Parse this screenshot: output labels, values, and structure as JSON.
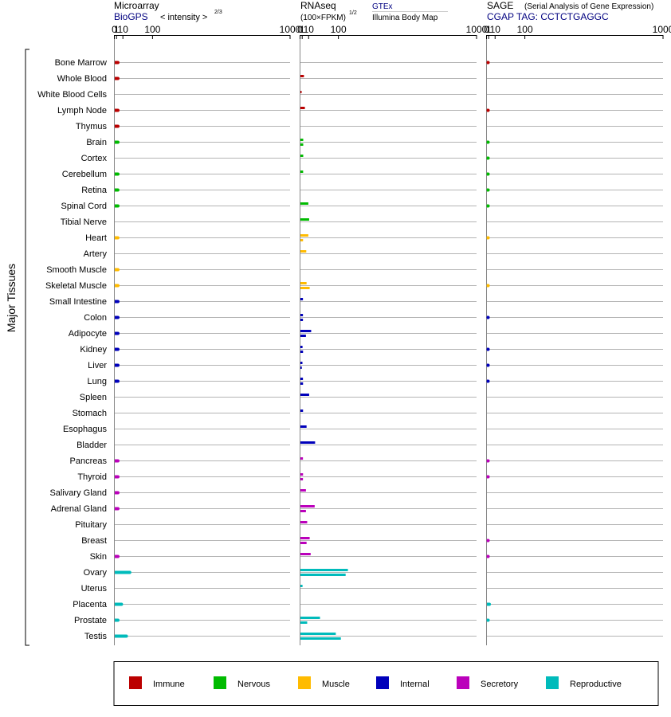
{
  "headers": {
    "microarray": {
      "title": "Microarray",
      "source": "BioGPS",
      "unit": "< intensity >",
      "unit_exp": "2/3"
    },
    "rnaseq": {
      "title": "RNAseq",
      "unit": "(100×FPKM)",
      "unit_exp": "1/2",
      "source1": "GTEx",
      "source2": "Illumina Body Map"
    },
    "sage": {
      "title": "SAGE",
      "subtitle": "(Serial Analysis of Gene Expression)",
      "tag": "CGAP TAG: CCTCTGAGGC"
    }
  },
  "ylabel": "Major Tissues",
  "legend": [
    {
      "label": "Immune",
      "color": "#bb0000"
    },
    {
      "label": "Nervous",
      "color": "#00bb00"
    },
    {
      "label": "Muscle",
      "color": "#ffbb00"
    },
    {
      "label": "Internal",
      "color": "#0000bb"
    },
    {
      "label": "Secretory",
      "color": "#bb00bb"
    },
    {
      "label": "Reproductive",
      "color": "#00bbbb"
    }
  ],
  "chart_data": {
    "type": "bar",
    "scale": "power-2/3",
    "axis_ticks": [
      0,
      1,
      10,
      100,
      1000
    ],
    "xlim": [
      0,
      1000
    ],
    "categories": [
      "Bone Marrow",
      "Whole Blood",
      "White Blood Cells",
      "Lymph Node",
      "Thymus",
      "Brain",
      "Cortex",
      "Cerebellum",
      "Retina",
      "Spinal Cord",
      "Tibial Nerve",
      "Heart",
      "Artery",
      "Smooth Muscle",
      "Skeletal Muscle",
      "Small Intestine",
      "Colon",
      "Adipocyte",
      "Kidney",
      "Liver",
      "Lung",
      "Spleen",
      "Stomach",
      "Esophagus",
      "Bladder",
      "Pancreas",
      "Thyroid",
      "Salivary Gland",
      "Adrenal Gland",
      "Pituitary",
      "Breast",
      "Skin",
      "Ovary",
      "Uterus",
      "Placenta",
      "Prostate",
      "Testis"
    ],
    "groups": [
      "Immune",
      "Immune",
      "Immune",
      "Immune",
      "Immune",
      "Nervous",
      "Nervous",
      "Nervous",
      "Nervous",
      "Nervous",
      "Nervous",
      "Muscle",
      "Muscle",
      "Muscle",
      "Muscle",
      "Internal",
      "Internal",
      "Internal",
      "Internal",
      "Internal",
      "Internal",
      "Internal",
      "Internal",
      "Internal",
      "Internal",
      "Secretory",
      "Secretory",
      "Secretory",
      "Secretory",
      "Secretory",
      "Secretory",
      "Secretory",
      "Reproductive",
      "Reproductive",
      "Reproductive",
      "Reproductive",
      "Reproductive"
    ],
    "series": [
      {
        "name": "Microarray",
        "values": [
          2.4,
          2.4,
          null,
          2.4,
          2.4,
          2.4,
          null,
          2.4,
          2.3,
          2.4,
          null,
          2.3,
          null,
          2.4,
          2.4,
          2.4,
          2.4,
          2.4,
          2.4,
          2.4,
          2.4,
          null,
          null,
          null,
          null,
          2.4,
          2.4,
          2.4,
          2.4,
          null,
          null,
          2.4,
          25,
          null,
          7.5,
          2.4,
          17
        ]
      },
      {
        "name": "RNAseq GTEx",
        "values": [
          null,
          2.8,
          0.006,
          4,
          null,
          2,
          2,
          1.9,
          null,
          9.5,
          11,
          9.5,
          6,
          null,
          6.5,
          1.7,
          1.7,
          15,
          1.3,
          1.2,
          1.7,
          11,
          1.8,
          6.5,
          24,
          1.7,
          1.8,
          5.5,
          23,
          7.5,
          12,
          14,
          140,
          1.3,
          null,
          37,
          90
        ]
      },
      {
        "name": "RNAseq Illumina Body Map",
        "values": [
          null,
          null,
          null,
          null,
          null,
          2,
          null,
          null,
          null,
          null,
          null,
          1.8,
          null,
          null,
          12,
          null,
          1.7,
          5.5,
          1.8,
          0.7,
          1.8,
          null,
          null,
          null,
          null,
          null,
          1.7,
          null,
          5.5,
          null,
          6.5,
          null,
          130,
          null,
          null,
          7.5,
          110
        ]
      },
      {
        "name": "SAGE",
        "values": [
          0.002,
          null,
          null,
          0.002,
          null,
          0.002,
          0.002,
          0.002,
          0.002,
          0.002,
          null,
          0.001,
          null,
          null,
          0.001,
          null,
          0.002,
          null,
          0.002,
          0.002,
          0.002,
          null,
          null,
          null,
          null,
          0.002,
          0.002,
          null,
          null,
          null,
          0.002,
          0.002,
          null,
          null,
          1.6,
          0.002,
          null
        ]
      }
    ]
  }
}
